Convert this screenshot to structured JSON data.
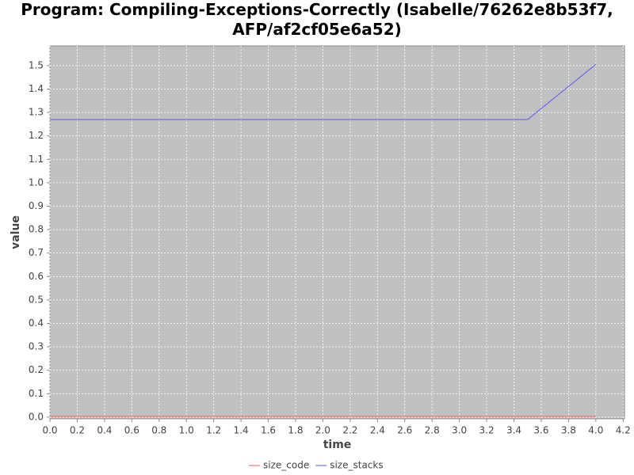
{
  "chart_data": {
    "type": "line",
    "title": "Program: Compiling-Exceptions-Correctly (Isabelle/76262e8b53f7, AFP/af2cf05e6a52)",
    "x_label": "time",
    "y_label": "value",
    "x": [
      0.0,
      0.5,
      1.0,
      1.5,
      2.0,
      2.5,
      3.0,
      3.5,
      4.0
    ],
    "series": [
      {
        "name": "size_code",
        "color": "#ff5555",
        "values": [
          0.003,
          0.003,
          0.003,
          0.003,
          0.003,
          0.003,
          0.003,
          0.003,
          0.003
        ]
      },
      {
        "name": "size_stacks",
        "color": "#5555ff",
        "values": [
          1.27,
          1.27,
          1.27,
          1.27,
          1.27,
          1.27,
          1.27,
          1.27,
          1.505
        ]
      }
    ],
    "xlim": [
      0,
      4.21
    ],
    "ylim": [
      -0.007,
      1.584
    ],
    "xticks": [
      {
        "value": 0,
        "label": "0.0"
      },
      0.2,
      0.4,
      0.6,
      0.8,
      {
        "value": 1,
        "label": "1.0"
      },
      1.2,
      1.4,
      1.6,
      1.8,
      {
        "value": 2,
        "label": "2.0"
      },
      2.2,
      2.4,
      2.6,
      2.8,
      {
        "value": 3,
        "label": "3.0"
      },
      3.2,
      3.4,
      3.6,
      3.8,
      {
        "value": 4,
        "label": "4.0"
      },
      4.2
    ],
    "yticks": [
      {
        "value": 0,
        "label": "0.0"
      },
      0.1,
      0.2,
      0.3,
      0.4,
      0.5,
      0.6,
      0.7,
      0.8,
      0.9,
      {
        "value": 1,
        "label": "1.0"
      },
      1.1,
      1.2,
      1.3,
      1.4,
      1.5
    ],
    "grid": true,
    "legend": "bottom",
    "plot_background": "#c0c0c0"
  }
}
